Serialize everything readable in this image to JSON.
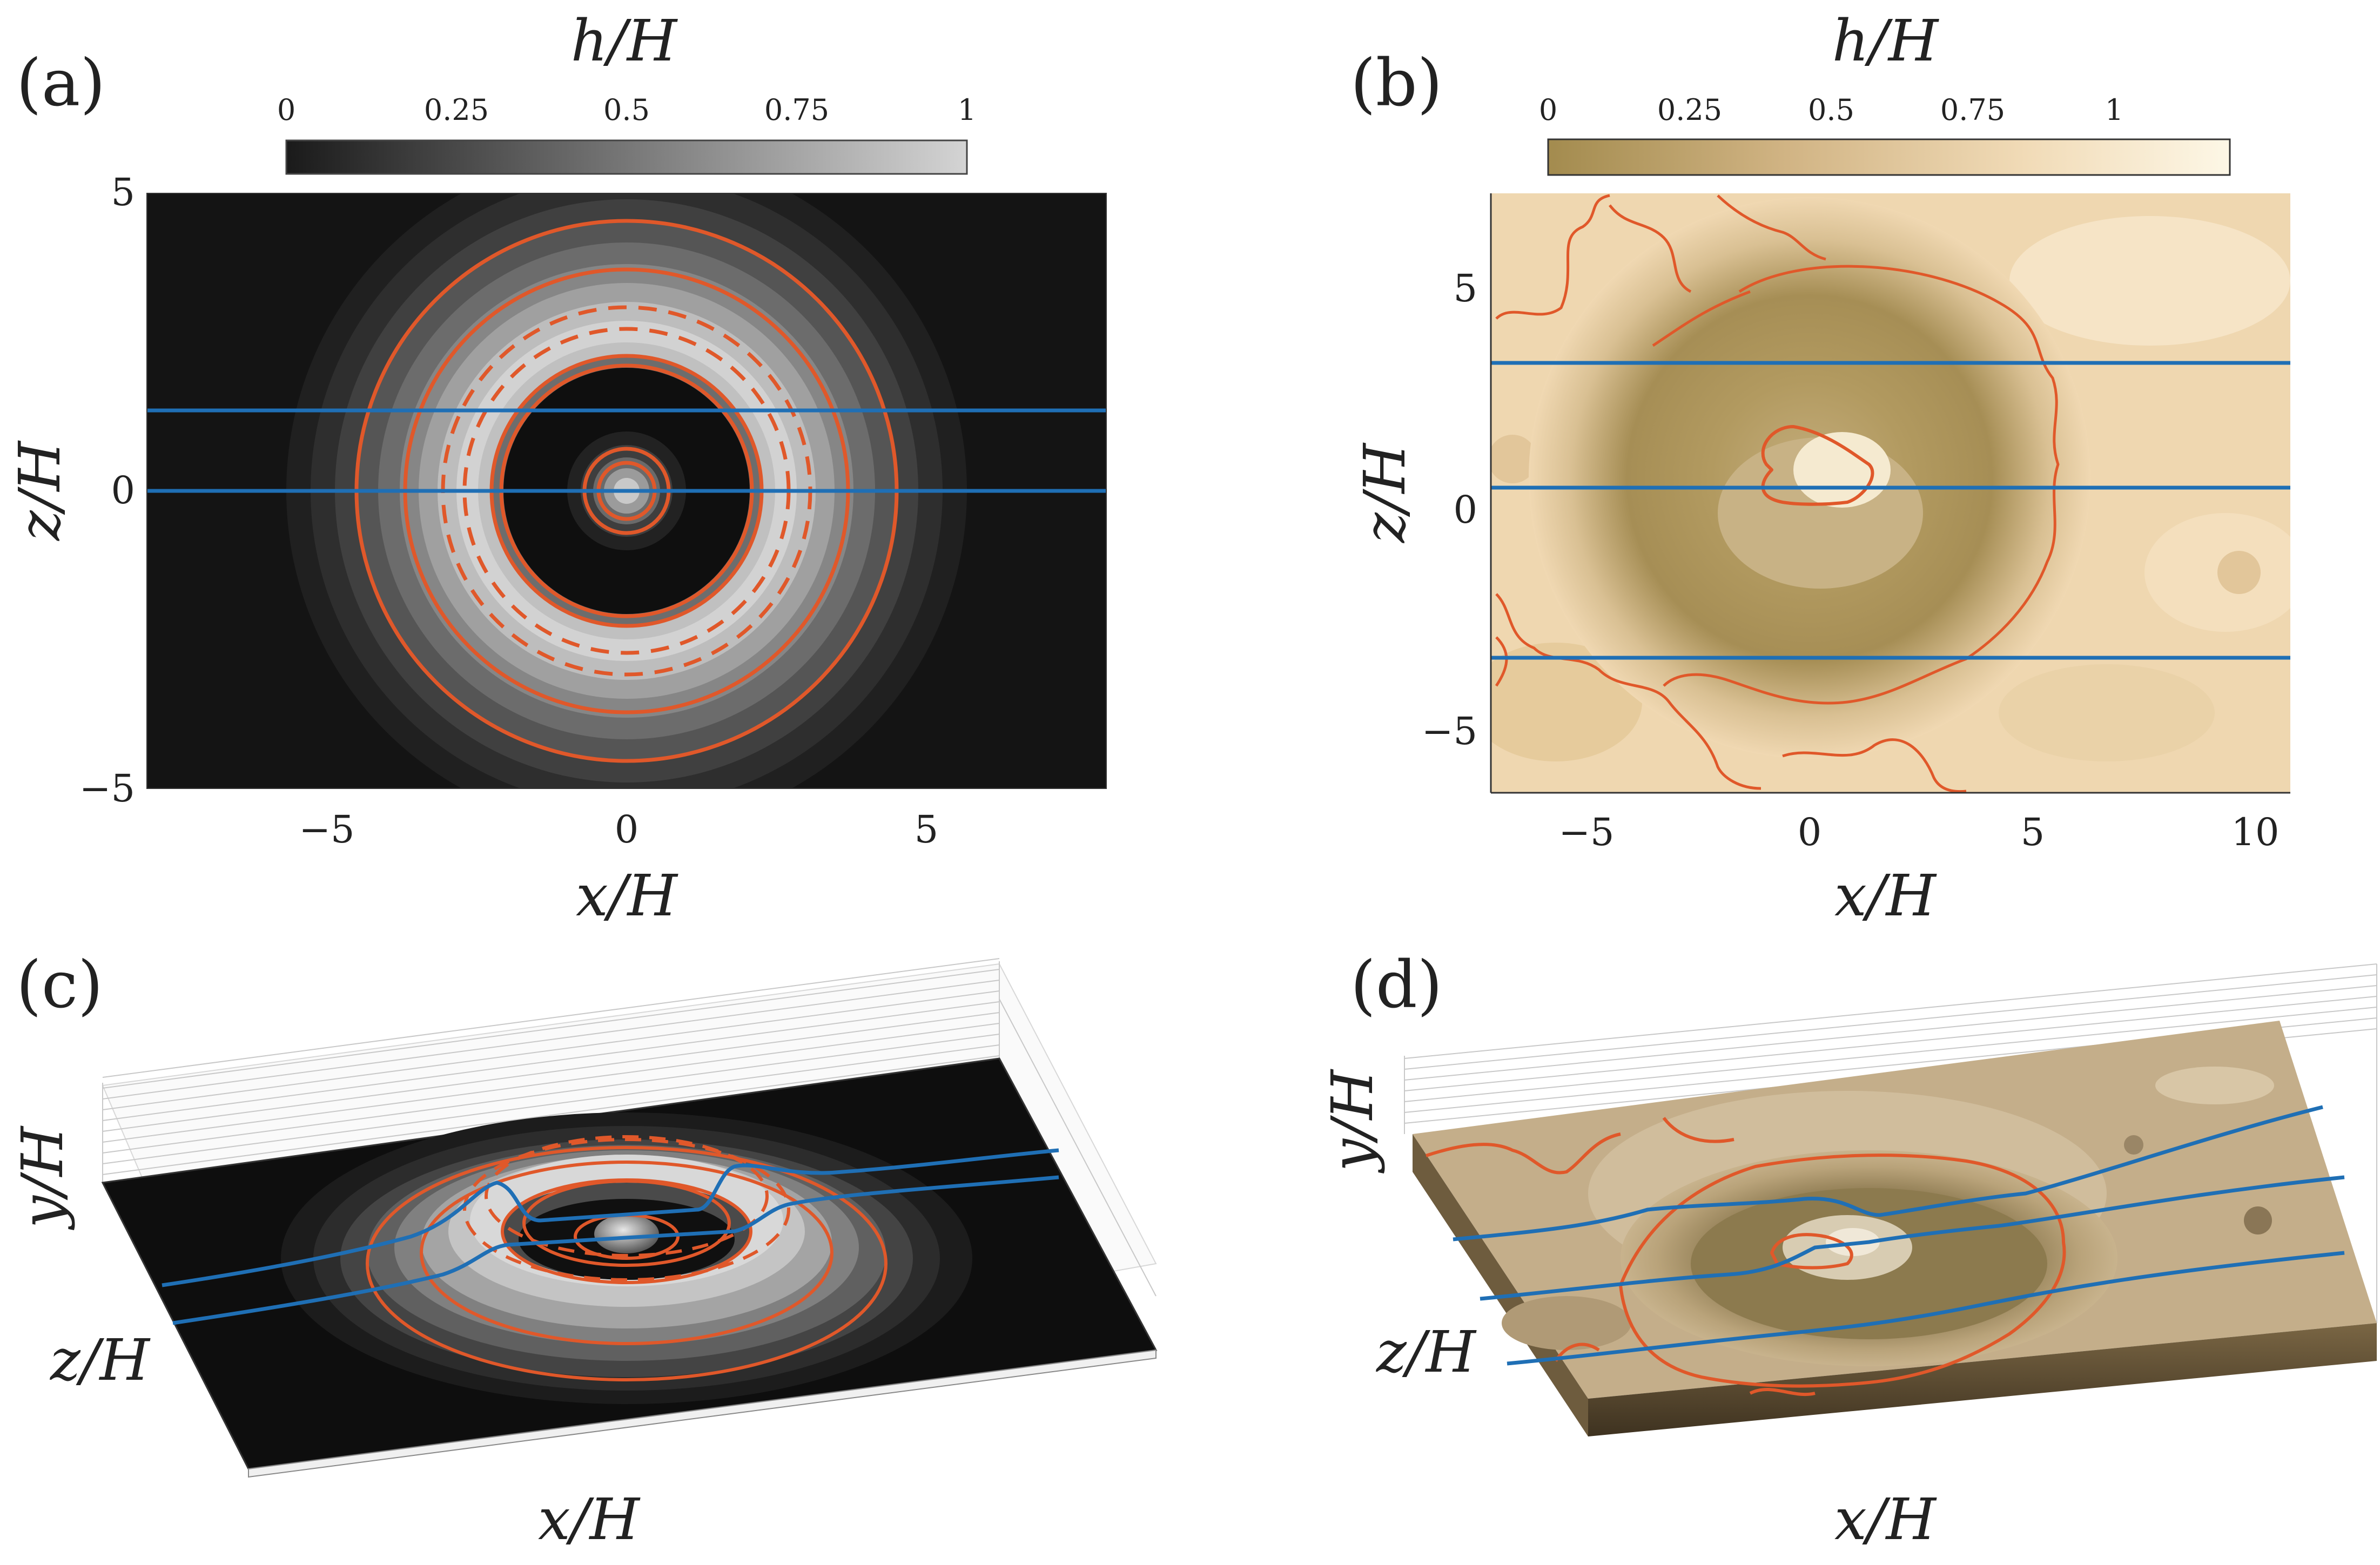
{
  "figure": {
    "panels": [
      {
        "id": "a",
        "label": "(a)",
        "colorbar_label": "h/H",
        "colorbar_ticks": [
          "0",
          "0.25",
          "0.5",
          "0.75",
          "1"
        ],
        "xlabel": "x/H",
        "ylabel": "z/H",
        "xticks": [
          "−5",
          "0",
          "5"
        ],
        "yticks": [
          "5",
          "0",
          "−5"
        ],
        "xlim": [
          -8,
          8
        ],
        "ylim": [
          -5,
          5
        ],
        "colormap": "grayscale",
        "streamline_z": [
          1.35,
          0
        ]
      },
      {
        "id": "b",
        "label": "(b)",
        "colorbar_label": "h/H",
        "colorbar_ticks": [
          "0",
          "0.25",
          "0.5",
          "0.75",
          "1"
        ],
        "xlabel": "x/H",
        "ylabel": "z/H",
        "xticks": [
          "−5",
          "0",
          "5",
          "10"
        ],
        "yticks": [
          "5",
          "0",
          "−5"
        ],
        "xlim": [
          -7.2,
          10.7
        ],
        "ylim": [
          -6.4,
          7
        ],
        "colormap": "sand",
        "streamline_z": [
          3.3,
          0.5,
          -3.3
        ]
      },
      {
        "id": "c",
        "label": "(c)",
        "xlabel": "x/H",
        "ylabel": "y/H",
        "zlabel": "z/H"
      },
      {
        "id": "d",
        "label": "(d)",
        "xlabel": "x/H",
        "ylabel": "y/H",
        "zlabel": "z/H"
      }
    ],
    "colors": {
      "contour": "#e0582a",
      "streamline": "#1f6fb5",
      "gray_dark": "#1a1a1a",
      "gray_light": "#d6d6d6",
      "sand_dark": "#a38b4e",
      "sand_light": "#fdf7e6"
    }
  }
}
